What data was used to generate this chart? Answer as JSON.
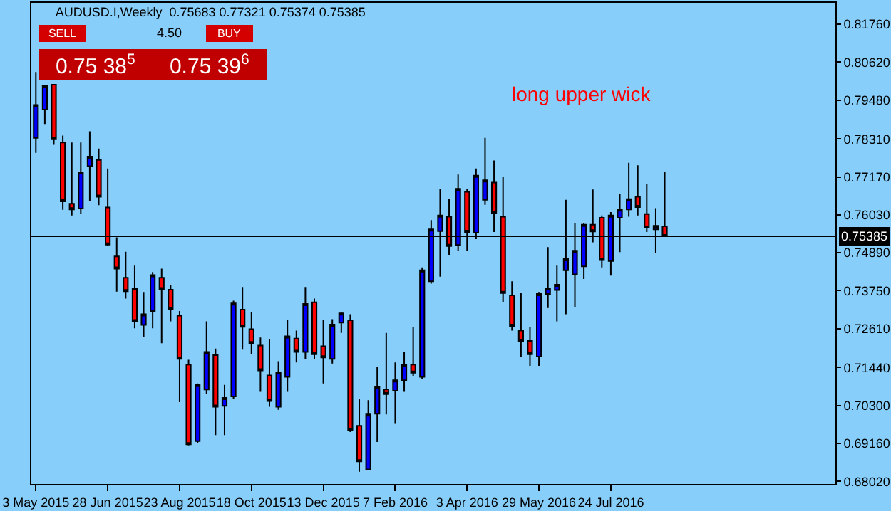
{
  "chart_data": {
    "type": "candlestick",
    "title": "AUDUSD.I,Weekly  0.75683 0.77321 0.75374 0.75385",
    "x": [
      "2015-05-03",
      "2015-05-10",
      "2015-05-17",
      "2015-05-24",
      "2015-05-31",
      "2015-06-07",
      "2015-06-14",
      "2015-06-21",
      "2015-06-28",
      "2015-07-05",
      "2015-07-12",
      "2015-07-19",
      "2015-07-26",
      "2015-08-02",
      "2015-08-09",
      "2015-08-16",
      "2015-08-23",
      "2015-08-30",
      "2015-09-06",
      "2015-09-13",
      "2015-09-20",
      "2015-09-27",
      "2015-10-04",
      "2015-10-11",
      "2015-10-18",
      "2015-10-25",
      "2015-11-01",
      "2015-11-08",
      "2015-11-15",
      "2015-11-22",
      "2015-11-29",
      "2015-12-06",
      "2015-12-13",
      "2015-12-20",
      "2015-12-27",
      "2016-01-03",
      "2016-01-10",
      "2016-01-17",
      "2016-01-24",
      "2016-01-31",
      "2016-02-07",
      "2016-02-14",
      "2016-02-21",
      "2016-02-28",
      "2016-03-06",
      "2016-03-13",
      "2016-03-20",
      "2016-03-27",
      "2016-04-03",
      "2016-04-10",
      "2016-04-17",
      "2016-04-24",
      "2016-05-01",
      "2016-05-08",
      "2016-05-15",
      "2016-05-22",
      "2016-05-29",
      "2016-06-05",
      "2016-06-12",
      "2016-06-19",
      "2016-06-26",
      "2016-07-03",
      "2016-07-10",
      "2016-07-17",
      "2016-07-24",
      "2016-07-31",
      "2016-08-07",
      "2016-08-14",
      "2016-08-21",
      "2016-08-28",
      "2016-09-04"
    ],
    "ohlc": [
      [
        0.7834,
        0.8032,
        0.7789,
        0.7933
      ],
      [
        0.7919,
        0.7994,
        0.7876,
        0.799
      ],
      [
        0.7994,
        0.7994,
        0.7813,
        0.783
      ],
      [
        0.782,
        0.7841,
        0.7618,
        0.7643
      ],
      [
        0.7636,
        0.782,
        0.7601,
        0.7619
      ],
      [
        0.7622,
        0.782,
        0.7605,
        0.7731
      ],
      [
        0.7749,
        0.7854,
        0.7643,
        0.7778
      ],
      [
        0.7768,
        0.7802,
        0.7632,
        0.7657
      ],
      [
        0.7625,
        0.7742,
        0.751,
        0.7513
      ],
      [
        0.7478,
        0.7535,
        0.7372,
        0.7441
      ],
      [
        0.7414,
        0.7492,
        0.7351,
        0.7373
      ],
      [
        0.738,
        0.745,
        0.7262,
        0.7283
      ],
      [
        0.7272,
        0.7371,
        0.7236,
        0.7304
      ],
      [
        0.7314,
        0.7431,
        0.7262,
        0.7422
      ],
      [
        0.7414,
        0.7441,
        0.7217,
        0.7379
      ],
      [
        0.7378,
        0.7392,
        0.7283,
        0.7318
      ],
      [
        0.73,
        0.7314,
        0.704,
        0.717
      ],
      [
        0.7153,
        0.7167,
        0.691,
        0.6913
      ],
      [
        0.6923,
        0.7096,
        0.6916,
        0.7092
      ],
      [
        0.7078,
        0.7283,
        0.7064,
        0.7191
      ],
      [
        0.7181,
        0.7201,
        0.6941,
        0.7026
      ],
      [
        0.7029,
        0.7092,
        0.6941,
        0.7053
      ],
      [
        0.7057,
        0.7345,
        0.705,
        0.7337
      ],
      [
        0.7318,
        0.7386,
        0.7198,
        0.7266
      ],
      [
        0.7259,
        0.7311,
        0.7184,
        0.7217
      ],
      [
        0.721,
        0.7234,
        0.7071,
        0.7135
      ],
      [
        0.712,
        0.7229,
        0.7026,
        0.7043
      ],
      [
        0.7026,
        0.7163,
        0.7017,
        0.713
      ],
      [
        0.7116,
        0.7286,
        0.7071,
        0.7238
      ],
      [
        0.7231,
        0.7255,
        0.7159,
        0.7191
      ],
      [
        0.7191,
        0.7386,
        0.717,
        0.7335
      ],
      [
        0.734,
        0.7351,
        0.717,
        0.7184
      ],
      [
        0.7208,
        0.7286,
        0.7096,
        0.7174
      ],
      [
        0.717,
        0.7289,
        0.7156,
        0.7273
      ],
      [
        0.7279,
        0.7311,
        0.7248,
        0.7307
      ],
      [
        0.7286,
        0.7304,
        0.695,
        0.6955
      ],
      [
        0.6969,
        0.705,
        0.6831,
        0.6862
      ],
      [
        0.6838,
        0.7046,
        0.6835,
        0.7003
      ],
      [
        0.7005,
        0.7145,
        0.692,
        0.7085
      ],
      [
        0.7078,
        0.7248,
        0.7003,
        0.7064
      ],
      [
        0.7074,
        0.7159,
        0.6975,
        0.7106
      ],
      [
        0.7106,
        0.7191,
        0.7071,
        0.7152
      ],
      [
        0.7153,
        0.7265,
        0.7118,
        0.7128
      ],
      [
        0.7116,
        0.7445,
        0.7109,
        0.7436
      ],
      [
        0.7403,
        0.7587,
        0.7396,
        0.7559
      ],
      [
        0.7554,
        0.7681,
        0.7417,
        0.7601
      ],
      [
        0.7597,
        0.765,
        0.7481,
        0.7509
      ],
      [
        0.7512,
        0.7724,
        0.7495,
        0.7681
      ],
      [
        0.7672,
        0.7681,
        0.7495,
        0.7551
      ],
      [
        0.7549,
        0.7742,
        0.753,
        0.7721
      ],
      [
        0.7648,
        0.7834,
        0.7633,
        0.7707
      ],
      [
        0.77,
        0.7766,
        0.7551,
        0.7608
      ],
      [
        0.7597,
        0.7718,
        0.734,
        0.7368
      ],
      [
        0.7361,
        0.7403,
        0.7255,
        0.7269
      ],
      [
        0.7255,
        0.7368,
        0.7177,
        0.7224
      ],
      [
        0.7224,
        0.7266,
        0.7149,
        0.7184
      ],
      [
        0.7177,
        0.7371,
        0.7149,
        0.7365
      ],
      [
        0.7365,
        0.7506,
        0.7323,
        0.7382
      ],
      [
        0.7377,
        0.745,
        0.7283,
        0.7393
      ],
      [
        0.7436,
        0.7648,
        0.7304,
        0.747
      ],
      [
        0.7424,
        0.7577,
        0.7325,
        0.7495
      ],
      [
        0.7448,
        0.7577,
        0.741,
        0.7573
      ],
      [
        0.7573,
        0.7679,
        0.752,
        0.7553
      ],
      [
        0.7594,
        0.7601,
        0.7445,
        0.7467
      ],
      [
        0.7464,
        0.7611,
        0.742,
        0.7601
      ],
      [
        0.7594,
        0.7665,
        0.7491,
        0.7619
      ],
      [
        0.7619,
        0.7759,
        0.7597,
        0.765
      ],
      [
        0.7657,
        0.7752,
        0.7601,
        0.7626
      ],
      [
        0.7605,
        0.7696,
        0.7551,
        0.7564
      ],
      [
        0.7559,
        0.7623,
        0.7488,
        0.757
      ],
      [
        0.75683,
        0.77321,
        0.75374,
        0.75385
      ]
    ],
    "colors": [
      "#0000ff",
      "#0000ff",
      "#ff0000",
      "#ff0000",
      "#ff0000",
      "#0000ff",
      "#0000ff",
      "#ff0000",
      "#ff0000",
      "#ff0000",
      "#ff0000",
      "#ff0000",
      "#0000ff",
      "#0000ff",
      "#ff0000",
      "#ff0000",
      "#ff0000",
      "#ff0000",
      "#0000ff",
      "#0000ff",
      "#ff0000",
      "#0000ff",
      "#0000ff",
      "#ff0000",
      "#ff0000",
      "#ff0000",
      "#ff0000",
      "#0000ff",
      "#0000ff",
      "#ff0000",
      "#0000ff",
      "#ff0000",
      "#ff0000",
      "#0000ff",
      "#0000ff",
      "#ff0000",
      "#ff0000",
      "#0000ff",
      "#0000ff",
      "#ff0000",
      "#0000ff",
      "#0000ff",
      "#ff0000",
      "#0000ff",
      "#0000ff",
      "#0000ff",
      "#ff0000",
      "#0000ff",
      "#ff0000",
      "#0000ff",
      "#0000ff",
      "#ff0000",
      "#ff0000",
      "#ff0000",
      "#ff0000",
      "#ff0000",
      "#0000ff",
      "#0000ff",
      "#0000ff",
      "#0000ff",
      "#0000ff",
      "#0000ff",
      "#ff0000",
      "#ff0000",
      "#0000ff",
      "#0000ff",
      "#0000ff",
      "#ff0000",
      "#ff0000",
      "#0000ff",
      "#ff0000"
    ],
    "xlim": [
      "2015-04-29T12:00",
      "2017-01-15"
    ],
    "xticks": [
      {
        "value": "2015-05-03",
        "label": "3 May 2015"
      },
      {
        "value": "2015-06-28",
        "label": "28 Jun 2015"
      },
      {
        "value": "2015-08-23",
        "label": "23 Aug 2015"
      },
      {
        "value": "2015-10-18",
        "label": "18 Oct 2015"
      },
      {
        "value": "2015-12-13",
        "label": "13 Dec 2015"
      },
      {
        "value": "2016-02-07",
        "label": "7 Feb 2016"
      },
      {
        "value": "2016-04-03",
        "label": "3 Apr 2016"
      },
      {
        "value": "2016-05-29",
        "label": "29 May 2016"
      },
      {
        "value": "2016-07-24",
        "label": "24 Jul 2016"
      }
    ],
    "ylim": [
      0.6794,
      0.824
    ],
    "yticks": [
      {
        "value": 0.8176,
        "label": "0.81760"
      },
      {
        "value": 0.8062,
        "label": "0.80620"
      },
      {
        "value": 0.7948,
        "label": "0.79480"
      },
      {
        "value": 0.7831,
        "label": "0.78310"
      },
      {
        "value": 0.7717,
        "label": "0.77170"
      },
      {
        "value": 0.7603,
        "label": "0.76030"
      },
      {
        "value": 0.7489,
        "label": "0.74890"
      },
      {
        "value": 0.7375,
        "label": "0.73750"
      },
      {
        "value": 0.7261,
        "label": "0.72610"
      },
      {
        "value": 0.7144,
        "label": "0.71440"
      },
      {
        "value": 0.703,
        "label": "0.70300"
      },
      {
        "value": 0.6916,
        "label": "0.69160"
      },
      {
        "value": 0.6802,
        "label": "0.68020"
      }
    ],
    "ref_lines": [
      {
        "axis": "y",
        "value": 0.75385,
        "label": "0.75385",
        "color": "#000000"
      }
    ],
    "annotations": [
      "long upper wick",
      "SELL",
      "4.50",
      "BUY",
      "0.75 38$^{5}$",
      "0.75 39$^{6}$"
    ],
    "grid": false
  }
}
